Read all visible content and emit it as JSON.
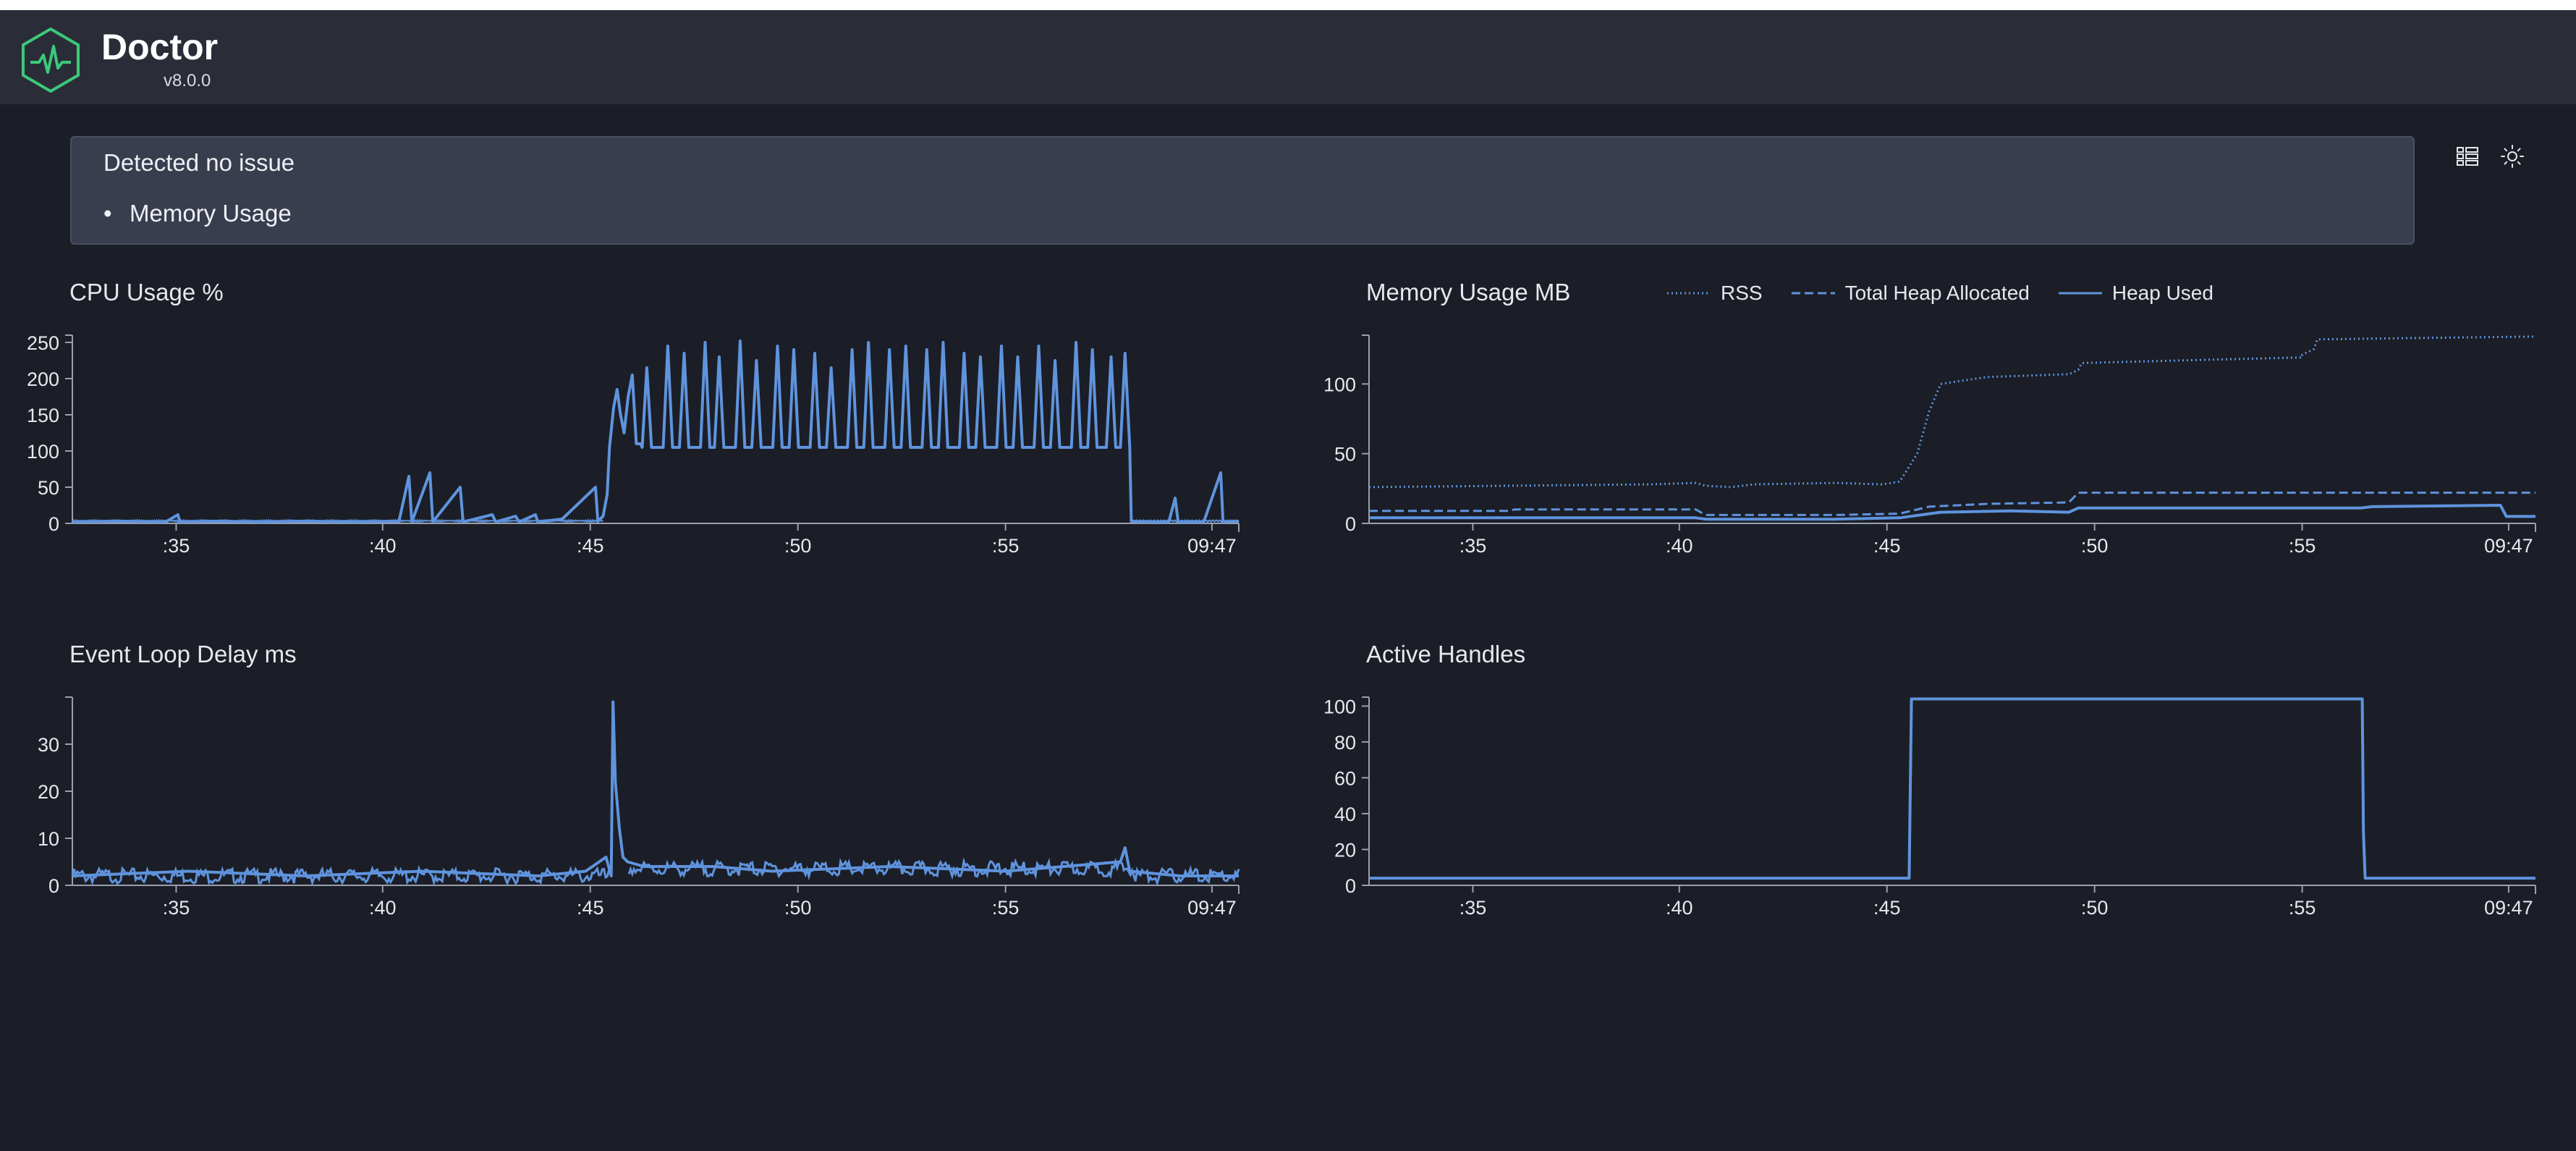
{
  "app": {
    "title": "Doctor",
    "version": "v8.0.0"
  },
  "alert": {
    "title": "Detected no issue",
    "items": [
      "Memory Usage"
    ]
  },
  "toolbar": {
    "layout_icon": "grid-layout-icon",
    "theme_icon": "sun-icon"
  },
  "colors": {
    "background": "#1b1e26",
    "header": "#2a2d38",
    "alert_bg": "#393e4e",
    "line": "#5f93dd",
    "axis": "#9aa0ad",
    "logo": "#3cc87a"
  },
  "chart_data": [
    {
      "id": "cpu",
      "type": "line",
      "title": "CPU Usage %",
      "xlabel": "",
      "ylabel": "",
      "x_range": [
        "09:32:30",
        "09:47:05"
      ],
      "x_ticks": [
        ":35",
        ":40",
        ":45",
        ":50",
        ":55",
        "09:47"
      ],
      "y_ticks": [
        0,
        50,
        100,
        150,
        200,
        250
      ],
      "ylim": [
        0,
        260
      ],
      "series": [
        {
          "style": "solid",
          "points": [
            [
              0,
              2
            ],
            [
              0.04,
              3
            ],
            [
              0.08,
              2
            ],
            [
              0.0905,
              12
            ],
            [
              0.092,
              2
            ],
            [
              0.12,
              3
            ],
            [
              0.16,
              2
            ],
            [
              0.2,
              3
            ],
            [
              0.24,
              2
            ],
            [
              0.28,
              3
            ],
            [
              0.2885,
              65
            ],
            [
              0.291,
              2
            ],
            [
              0.3065,
              70
            ],
            [
              0.309,
              2
            ],
            [
              0.3325,
              50
            ],
            [
              0.335,
              2
            ],
            [
              0.36,
              12
            ],
            [
              0.363,
              2
            ],
            [
              0.38,
              10
            ],
            [
              0.383,
              2
            ],
            [
              0.397,
              12
            ],
            [
              0.399,
              2
            ],
            [
              0.42,
              6
            ],
            [
              0.4485,
              50
            ],
            [
              0.4505,
              3
            ],
            [
              0.455,
              10
            ],
            [
              0.4585,
              40
            ],
            [
              0.4605,
              105
            ],
            [
              0.464,
              160
            ],
            [
              0.467,
              185
            ],
            [
              0.47,
              150
            ],
            [
              0.473,
              125
            ],
            [
              0.4765,
              175
            ],
            [
              0.48,
              205
            ],
            [
              0.4835,
              110
            ],
            [
              0.487,
              110
            ],
            [
              0.4885,
              105
            ],
            [
              0.4925,
              215
            ],
            [
              0.4965,
              105
            ],
            [
              0.5065,
              105
            ],
            [
              0.5105,
              245
            ],
            [
              0.5145,
              105
            ],
            [
              0.5205,
              105
            ],
            [
              0.5245,
              235
            ],
            [
              0.5285,
              105
            ],
            [
              0.5385,
              105
            ],
            [
              0.5425,
              250
            ],
            [
              0.5465,
              105
            ],
            [
              0.5505,
              105
            ],
            [
              0.5545,
              230
            ],
            [
              0.5585,
              105
            ],
            [
              0.5685,
              105
            ],
            [
              0.5725,
              252
            ],
            [
              0.5765,
              105
            ],
            [
              0.5825,
              105
            ],
            [
              0.5865,
              225
            ],
            [
              0.5905,
              105
            ],
            [
              0.6005,
              105
            ],
            [
              0.6045,
              245
            ],
            [
              0.6085,
              105
            ],
            [
              0.6145,
              105
            ],
            [
              0.6185,
              240
            ],
            [
              0.6225,
              105
            ],
            [
              0.6325,
              105
            ],
            [
              0.6365,
              235
            ],
            [
              0.6405,
              105
            ],
            [
              0.6465,
              105
            ],
            [
              0.6505,
              215
            ],
            [
              0.6545,
              105
            ],
            [
              0.6645,
              105
            ],
            [
              0.6685,
              240
            ],
            [
              0.6725,
              105
            ],
            [
              0.6785,
              105
            ],
            [
              0.6825,
              250
            ],
            [
              0.6865,
              105
            ],
            [
              0.6965,
              105
            ],
            [
              0.7005,
              240
            ],
            [
              0.7045,
              105
            ],
            [
              0.7105,
              105
            ],
            [
              0.7145,
              245
            ],
            [
              0.7185,
              105
            ],
            [
              0.7285,
              105
            ],
            [
              0.7325,
              240
            ],
            [
              0.7365,
              105
            ],
            [
              0.7425,
              105
            ],
            [
              0.7465,
              250
            ],
            [
              0.7505,
              105
            ],
            [
              0.7605,
              105
            ],
            [
              0.7645,
              235
            ],
            [
              0.7685,
              105
            ],
            [
              0.7745,
              105
            ],
            [
              0.7785,
              230
            ],
            [
              0.7825,
              105
            ],
            [
              0.7925,
              105
            ],
            [
              0.7965,
              245
            ],
            [
              0.8005,
              105
            ],
            [
              0.8065,
              105
            ],
            [
              0.8105,
              230
            ],
            [
              0.8145,
              105
            ],
            [
              0.8245,
              105
            ],
            [
              0.8285,
              245
            ],
            [
              0.8325,
              105
            ],
            [
              0.8385,
              105
            ],
            [
              0.8425,
              225
            ],
            [
              0.8465,
              105
            ],
            [
              0.8565,
              105
            ],
            [
              0.8605,
              250
            ],
            [
              0.8645,
              105
            ],
            [
              0.8705,
              105
            ],
            [
              0.8745,
              240
            ],
            [
              0.8785,
              105
            ],
            [
              0.8865,
              105
            ],
            [
              0.8905,
              230
            ],
            [
              0.8945,
              105
            ],
            [
              0.8985,
              105
            ],
            [
              0.9025,
              235
            ],
            [
              0.9065,
              105
            ],
            [
              0.9078,
              3
            ],
            [
              0.92,
              2
            ],
            [
              0.94,
              2
            ],
            [
              0.9455,
              35
            ],
            [
              0.948,
              2
            ],
            [
              0.97,
              2
            ],
            [
              0.9845,
              70
            ],
            [
              0.9865,
              2
            ],
            [
              1,
              3
            ]
          ]
        }
      ]
    },
    {
      "id": "memory",
      "type": "line",
      "title": "Memory Usage MB",
      "xlabel": "",
      "ylabel": "",
      "x_range": [
        "09:32:30",
        "09:47:05"
      ],
      "x_ticks": [
        ":35",
        ":40",
        ":45",
        ":50",
        ":55",
        "09:47"
      ],
      "y_ticks": [
        0,
        50,
        100
      ],
      "ylim": [
        0,
        135
      ],
      "series": [
        {
          "name": "RSS",
          "style": "dotted",
          "points": [
            [
              0,
              26
            ],
            [
              0.12,
              27
            ],
            [
              0.24,
              28
            ],
            [
              0.28,
              29
            ],
            [
              0.2885,
              27
            ],
            [
              0.31,
              26
            ],
            [
              0.33,
              28
            ],
            [
              0.4,
              29
            ],
            [
              0.44,
              28
            ],
            [
              0.455,
              30
            ],
            [
              0.47,
              50
            ],
            [
              0.48,
              80
            ],
            [
              0.49,
              100
            ],
            [
              0.53,
              105
            ],
            [
              0.6,
              107
            ],
            [
              0.608,
              110
            ],
            [
              0.611,
              115
            ],
            [
              0.7,
              117
            ],
            [
              0.8,
              119
            ],
            [
              0.8,
              121
            ],
            [
              0.81,
              125
            ],
            [
              0.813,
              132
            ],
            [
              0.9,
              133
            ],
            [
              1,
              134
            ]
          ]
        },
        {
          "name": "Total Heap Allocated",
          "style": "dashed",
          "points": [
            [
              0,
              9
            ],
            [
              0.12,
              9
            ],
            [
              0.125,
              10
            ],
            [
              0.28,
              10
            ],
            [
              0.2885,
              6
            ],
            [
              0.4,
              6
            ],
            [
              0.455,
              7
            ],
            [
              0.48,
              12
            ],
            [
              0.53,
              14
            ],
            [
              0.6,
              15
            ],
            [
              0.608,
              22
            ],
            [
              0.9,
              22
            ],
            [
              1,
              22
            ]
          ]
        },
        {
          "name": "Heap Used",
          "style": "solid",
          "points": [
            [
              0,
              4
            ],
            [
              0.28,
              4
            ],
            [
              0.2885,
              3
            ],
            [
              0.4,
              3
            ],
            [
              0.455,
              4
            ],
            [
              0.49,
              8
            ],
            [
              0.55,
              9
            ],
            [
              0.6,
              8
            ],
            [
              0.608,
              11
            ],
            [
              0.85,
              11
            ],
            [
              0.86,
              12
            ],
            [
              0.97,
              13
            ],
            [
              0.975,
              5
            ],
            [
              1,
              5
            ]
          ]
        }
      ]
    },
    {
      "id": "eventloop",
      "type": "line",
      "title": "Event Loop Delay ms",
      "xlabel": "",
      "ylabel": "",
      "x_range": [
        "09:32:30",
        "09:47:05"
      ],
      "x_ticks": [
        ":35",
        ":40",
        ":45",
        ":50",
        ":55",
        "09:47"
      ],
      "y_ticks": [
        0,
        10,
        20,
        30
      ],
      "ylim": [
        0,
        40
      ],
      "series": [
        {
          "style": "solid",
          "points": [
            [
              0,
              2
            ],
            [
              0.1,
              3
            ],
            [
              0.2,
              2
            ],
            [
              0.3,
              3
            ],
            [
              0.4,
              2
            ],
            [
              0.44,
              3
            ],
            [
              0.4575,
              6
            ],
            [
              0.462,
              2
            ],
            [
              0.4635,
              39
            ],
            [
              0.4655,
              22
            ],
            [
              0.469,
              12
            ],
            [
              0.472,
              6
            ],
            [
              0.476,
              5
            ],
            [
              0.49,
              4
            ],
            [
              0.55,
              4
            ],
            [
              0.6,
              3
            ],
            [
              0.7,
              4
            ],
            [
              0.8,
              3
            ],
            [
              0.85,
              4
            ],
            [
              0.8985,
              5
            ],
            [
              0.9025,
              8
            ],
            [
              0.9065,
              3
            ],
            [
              0.95,
              2
            ],
            [
              1,
              2
            ]
          ]
        }
      ]
    },
    {
      "id": "handles",
      "type": "line",
      "title": "Active Handles",
      "xlabel": "",
      "ylabel": "",
      "x_range": [
        "09:32:30",
        "09:47:05"
      ],
      "x_ticks": [
        ":35",
        ":40",
        ":45",
        ":50",
        ":55",
        "09:47"
      ],
      "y_ticks": [
        0,
        20,
        40,
        60,
        80,
        100
      ],
      "ylim": [
        0,
        105
      ],
      "series": [
        {
          "style": "solid",
          "points": [
            [
              0,
              4
            ],
            [
              0.463,
              4
            ],
            [
              0.465,
              104
            ],
            [
              0.8515,
              104
            ],
            [
              0.8525,
              30
            ],
            [
              0.854,
              4
            ],
            [
              1,
              4
            ]
          ]
        }
      ]
    }
  ]
}
